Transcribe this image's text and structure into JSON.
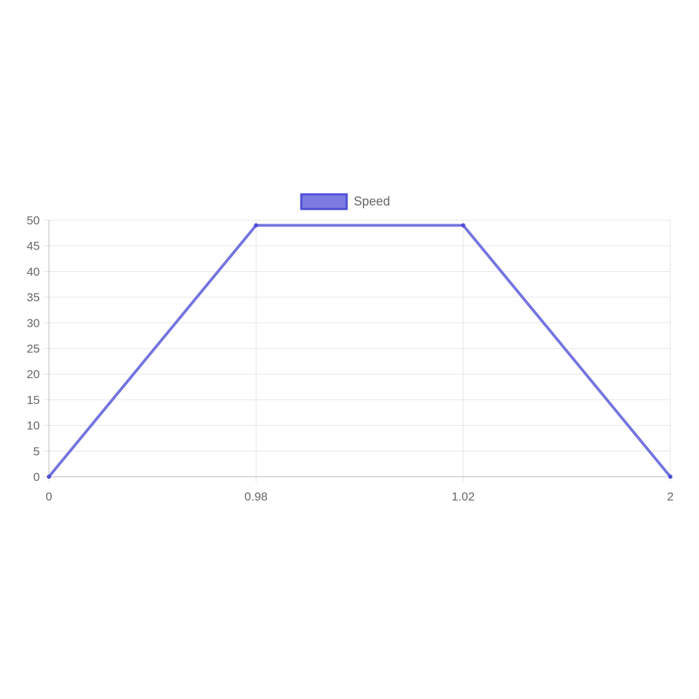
{
  "chart_data": {
    "type": "line",
    "categories": [
      "0",
      "0.98",
      "1.02",
      "2"
    ],
    "series": [
      {
        "name": "Speed",
        "values": [
          0,
          49,
          49,
          0
        ],
        "color": "#7474e0",
        "fill_color": "#7c7ce2",
        "border_color": "#4d4dd6"
      }
    ],
    "ylim": [
      0,
      50
    ],
    "yticks": [
      0,
      5,
      10,
      15,
      20,
      25,
      30,
      35,
      40,
      45,
      50
    ],
    "grid": true,
    "legend": "top-center",
    "grid_color": "#e5e5e5",
    "axis_color": "#b8b8b8"
  }
}
